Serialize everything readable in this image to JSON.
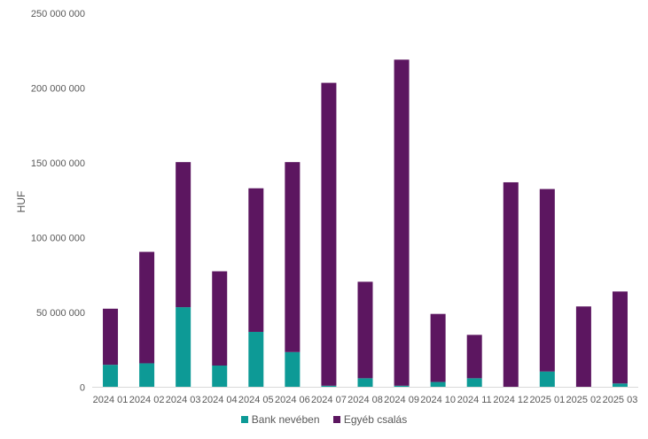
{
  "chart_data": {
    "type": "bar",
    "stacked": true,
    "title": "",
    "xlabel": "",
    "ylabel": "HUF",
    "ylim": [
      0,
      250000000
    ],
    "yticks": [
      0,
      50000000,
      100000000,
      150000000,
      200000000,
      250000000
    ],
    "ytick_labels": [
      "0",
      "50 000 000",
      "100 000 000",
      "150 000 000",
      "200 000 000",
      "250 000 000"
    ],
    "categories": [
      "2024 01",
      "2024 02",
      "2024 03",
      "2024 04",
      "2024 05",
      "2024 06",
      "2024 07",
      "2024 08",
      "2024 09",
      "2024 10",
      "2024 11",
      "2024 12",
      "2025 01",
      "2025 02",
      "2025 03"
    ],
    "series": [
      {
        "name": "Bank nevében",
        "color": "#0d9a96",
        "values": [
          15000000,
          16000000,
          53500000,
          14500000,
          37000000,
          23500000,
          1000000,
          6000000,
          1000000,
          3500000,
          6000000,
          0,
          10500000,
          0,
          2500000
        ]
      },
      {
        "name": "Egyéb csalás",
        "color": "#5c1660",
        "values": [
          37500000,
          74500000,
          97000000,
          63000000,
          96000000,
          127000000,
          202500000,
          64500000,
          218000000,
          45500000,
          29000000,
          137000000,
          122000000,
          54000000,
          61500000
        ]
      }
    ],
    "legend_position": "bottom"
  }
}
